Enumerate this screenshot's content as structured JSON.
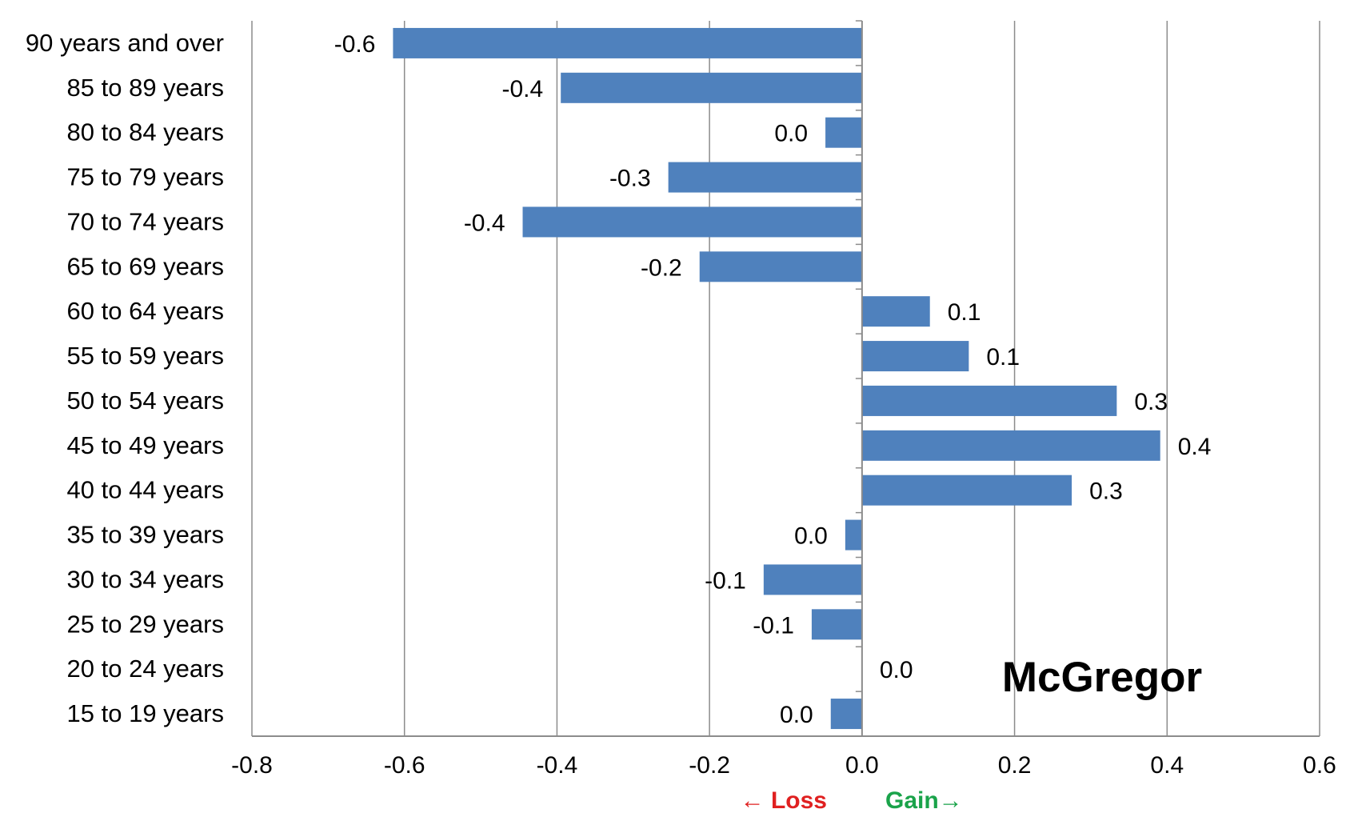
{
  "chart_data": {
    "type": "bar",
    "orientation": "horizontal",
    "title": "McGregor",
    "xlabel": "",
    "ylabel": "",
    "xlim": [
      -0.8,
      0.6
    ],
    "x_ticks": [
      -0.8,
      -0.6,
      -0.4,
      -0.2,
      0.0,
      0.2,
      0.4,
      0.6
    ],
    "x_tick_labels": [
      "-0.8",
      "-0.6",
      "-0.4",
      "-0.2",
      "0.0",
      "0.2",
      "0.4",
      "0.6"
    ],
    "grid": "vertical",
    "legend": "none",
    "categories": [
      "90 years and over",
      "85 to 89 years",
      "80 to 84 years",
      "75 to 79 years",
      "70 to 74 years",
      "65 to 69 years",
      "60 to 64 years",
      "55 to 59 years",
      "50 to 54 years",
      "45 to 49 years",
      "40 to 44 years",
      "35 to 39 years",
      "30 to 34 years",
      "25 to 29 years",
      "20 to 24 years",
      "15 to 19 years"
    ],
    "values": [
      -0.615,
      -0.395,
      -0.048,
      -0.254,
      -0.445,
      -0.213,
      0.089,
      0.14,
      0.334,
      0.391,
      0.275,
      -0.022,
      -0.129,
      -0.066,
      0.0,
      -0.041
    ],
    "data_labels": [
      "-0.6",
      "-0.4",
      "0.0",
      "-0.3",
      "-0.4",
      "-0.2",
      "0.1",
      "0.1",
      "0.3",
      "0.4",
      "0.3",
      "0.0",
      "-0.1",
      "-0.1",
      "0.0",
      "0.0"
    ],
    "annotations": {
      "loss": "← Loss",
      "gain": "Gain→"
    },
    "colors": {
      "bar": "#4f81bd",
      "grid": "#8c8c8c",
      "axis": "#8c8c8c",
      "text": "#000000",
      "loss": "#e02020",
      "gain": "#1aa34a"
    }
  }
}
